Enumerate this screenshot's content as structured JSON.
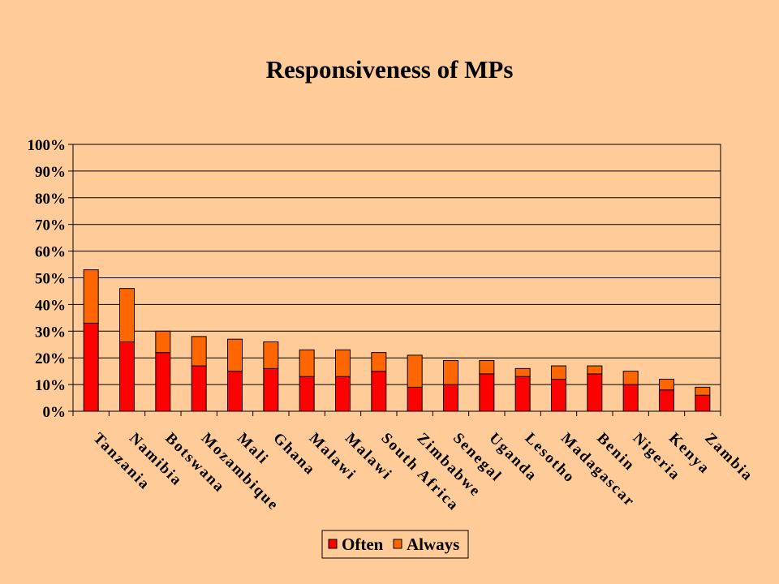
{
  "page": {
    "background": "#FFCC99"
  },
  "chart_data": {
    "type": "bar",
    "stacked": true,
    "title": "Responsiveness of MPs",
    "xlabel": "",
    "ylabel": "",
    "ylim": [
      0,
      100
    ],
    "yticks": [
      "0%",
      "10%",
      "20%",
      "30%",
      "40%",
      "50%",
      "60%",
      "70%",
      "80%",
      "90%",
      "100%"
    ],
    "grid": true,
    "legend_position": "bottom-center",
    "categories": [
      "Tanzania",
      "Namibia",
      "Botswana",
      "Mozambique",
      "Mali",
      "Ghana",
      "Malawi",
      "Malawi",
      "South Africa",
      "Zimbabwe",
      "Senegal",
      "Uganda",
      "Lesotho",
      "Madagascar",
      "Benin",
      "Nigeria",
      "Kenya",
      "Zambia"
    ],
    "series": [
      {
        "name": "Often",
        "color": "#FF0000",
        "values": [
          33,
          26,
          22,
          17,
          15,
          16,
          13,
          13,
          15,
          9,
          10,
          14,
          13,
          12,
          14,
          10,
          8,
          6
        ]
      },
      {
        "name": "Always",
        "color": "#FF6600",
        "values": [
          20,
          20,
          8,
          11,
          12,
          10,
          10,
          10,
          7,
          12,
          9,
          5,
          3,
          5,
          3,
          5,
          4,
          3
        ]
      }
    ]
  }
}
